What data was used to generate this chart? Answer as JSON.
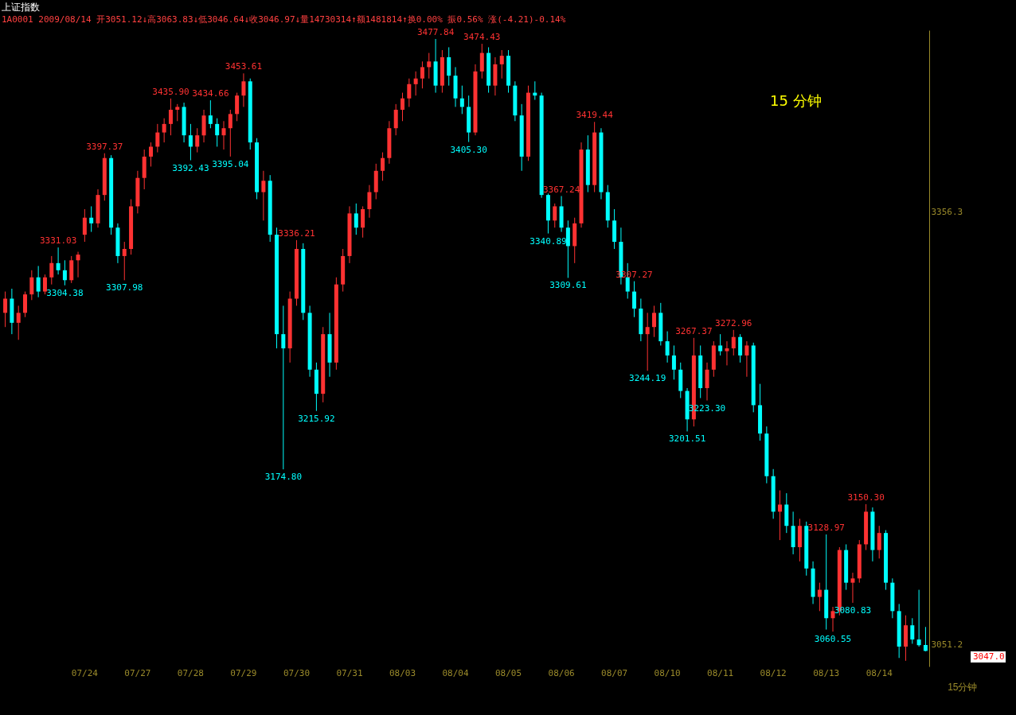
{
  "chart_data": {
    "type": "candlestick",
    "title": "上证指数",
    "subtitle": "1A0001 2009/08/14 开3051.12↓高3063.83↓低3046.64↓收3046.97↓量14730314↑额1481814↑换0.00% 振0.56% 涨(-4.21)-0.14%",
    "xlabel": "15分钟",
    "categories": [
      null,
      null,
      null,
      null,
      null,
      null,
      null,
      null,
      null,
      null,
      null,
      null,
      "07/24",
      null,
      null,
      null,
      null,
      null,
      null,
      null,
      "07/27",
      null,
      null,
      null,
      null,
      null,
      null,
      null,
      "07/28",
      null,
      null,
      null,
      null,
      null,
      null,
      null,
      "07/29",
      null,
      null,
      null,
      null,
      null,
      null,
      null,
      "07/30",
      null,
      null,
      null,
      null,
      null,
      null,
      null,
      "07/31",
      null,
      null,
      null,
      null,
      null,
      null,
      null,
      "08/03",
      null,
      null,
      null,
      null,
      null,
      null,
      null,
      "08/04",
      null,
      null,
      null,
      null,
      null,
      null,
      null,
      "08/05",
      null,
      null,
      null,
      null,
      null,
      null,
      null,
      "08/06",
      null,
      null,
      null,
      null,
      null,
      null,
      null,
      "08/07",
      null,
      null,
      null,
      null,
      null,
      null,
      null,
      "08/10",
      null,
      null,
      null,
      null,
      null,
      null,
      null,
      "08/11",
      null,
      null,
      null,
      null,
      null,
      null,
      null,
      "08/12",
      null,
      null,
      null,
      null,
      null,
      null,
      null,
      "08/13",
      null,
      null,
      null,
      null,
      null,
      null,
      null,
      "08/14",
      null,
      null,
      null,
      null,
      null,
      null,
      null
    ],
    "ohlc": [
      [
        3285,
        3300,
        3275,
        3295
      ],
      [
        3295,
        3302,
        3270,
        3278
      ],
      [
        3278,
        3290,
        3266,
        3285
      ],
      [
        3285,
        3300,
        3282,
        3298
      ],
      [
        3298,
        3315,
        3294,
        3310
      ],
      [
        3310,
        3318,
        3296,
        3300
      ],
      [
        3300,
        3312,
        3298,
        3310
      ],
      [
        3310,
        3325,
        3305,
        3320
      ],
      [
        3320,
        3331.03,
        3312,
        3315
      ],
      [
        3315,
        3322,
        3304.38,
        3308
      ],
      [
        3308,
        3325,
        3306,
        3322
      ],
      [
        3322,
        3328,
        3310,
        3326
      ],
      [
        3340,
        3358,
        3335,
        3352
      ],
      [
        3352,
        3360,
        3342,
        3348
      ],
      [
        3348,
        3372,
        3345,
        3368
      ],
      [
        3368,
        3397.37,
        3364,
        3394
      ],
      [
        3394,
        3396,
        3340,
        3345
      ],
      [
        3345,
        3348,
        3320,
        3325
      ],
      [
        3325,
        3335,
        3307.98,
        3330
      ],
      [
        3330,
        3365,
        3326,
        3360
      ],
      [
        3360,
        3385,
        3355,
        3380
      ],
      [
        3380,
        3400,
        3372,
        3395
      ],
      [
        3395,
        3405,
        3388,
        3402
      ],
      [
        3402,
        3418,
        3398,
        3412
      ],
      [
        3412,
        3422,
        3405,
        3418
      ],
      [
        3418,
        3435.9,
        3410,
        3428
      ],
      [
        3428,
        3432,
        3420,
        3430
      ],
      [
        3430,
        3433,
        3405,
        3410
      ],
      [
        3410,
        3418,
        3392.43,
        3402
      ],
      [
        3402,
        3415,
        3398,
        3410
      ],
      [
        3410,
        3428,
        3405,
        3424
      ],
      [
        3424,
        3434.66,
        3415,
        3418
      ],
      [
        3418,
        3422,
        3402,
        3410
      ],
      [
        3410,
        3420,
        3400,
        3415
      ],
      [
        3415,
        3428,
        3395.04,
        3425
      ],
      [
        3425,
        3440,
        3420,
        3438
      ],
      [
        3438,
        3453.61,
        3430,
        3448
      ],
      [
        3448,
        3450,
        3400,
        3405
      ],
      [
        3405,
        3408,
        3365,
        3370
      ],
      [
        3370,
        3385,
        3350,
        3378
      ],
      [
        3378,
        3382,
        3335,
        3340
      ],
      [
        3340,
        3345,
        3260,
        3270
      ],
      [
        3270,
        3290,
        3174.8,
        3260
      ],
      [
        3260,
        3300,
        3250,
        3295
      ],
      [
        3295,
        3336.21,
        3290,
        3330
      ],
      [
        3330,
        3334,
        3280,
        3285
      ],
      [
        3285,
        3290,
        3240,
        3245
      ],
      [
        3245,
        3250,
        3215.92,
        3228
      ],
      [
        3228,
        3275,
        3222,
        3270
      ],
      [
        3270,
        3285,
        3240,
        3250
      ],
      [
        3250,
        3310,
        3245,
        3305
      ],
      [
        3305,
        3330,
        3300,
        3325
      ],
      [
        3325,
        3360,
        3320,
        3355
      ],
      [
        3355,
        3362,
        3340,
        3345
      ],
      [
        3345,
        3360,
        3338,
        3358
      ],
      [
        3358,
        3375,
        3352,
        3370
      ],
      [
        3370,
        3390,
        3365,
        3385
      ],
      [
        3385,
        3398,
        3378,
        3394
      ],
      [
        3394,
        3420,
        3390,
        3415
      ],
      [
        3415,
        3432,
        3410,
        3428
      ],
      [
        3428,
        3440,
        3420,
        3436
      ],
      [
        3436,
        3450,
        3430,
        3446
      ],
      [
        3446,
        3455,
        3438,
        3450
      ],
      [
        3450,
        3462,
        3443,
        3458
      ],
      [
        3458,
        3468,
        3450,
        3462
      ],
      [
        3462,
        3477.84,
        3440,
        3445
      ],
      [
        3445,
        3470,
        3440,
        3465
      ],
      [
        3465,
        3472,
        3445,
        3452
      ],
      [
        3452,
        3458,
        3430,
        3436
      ],
      [
        3436,
        3445,
        3425,
        3430
      ],
      [
        3430,
        3438,
        3405.3,
        3412
      ],
      [
        3412,
        3460,
        3410,
        3455
      ],
      [
        3455,
        3474.43,
        3450,
        3468
      ],
      [
        3468,
        3472,
        3440,
        3445
      ],
      [
        3445,
        3465,
        3438,
        3460
      ],
      [
        3460,
        3470,
        3450,
        3466
      ],
      [
        3466,
        3470,
        3440,
        3445
      ],
      [
        3445,
        3448,
        3420,
        3424
      ],
      [
        3424,
        3432,
        3385,
        3395
      ],
      [
        3395,
        3445,
        3392,
        3440
      ],
      [
        3440,
        3448,
        3435,
        3438
      ],
      [
        3438,
        3440,
        3366,
        3368
      ],
      [
        3368,
        3369,
        3340.89,
        3350
      ],
      [
        3350,
        3362,
        3345,
        3360
      ],
      [
        3360,
        3367.24,
        3342,
        3345
      ],
      [
        3345,
        3350,
        3309.61,
        3332
      ],
      [
        3332,
        3352,
        3320,
        3348
      ],
      [
        3348,
        3405,
        3345,
        3400
      ],
      [
        3400,
        3410,
        3370,
        3375
      ],
      [
        3375,
        3419.44,
        3370,
        3412
      ],
      [
        3412,
        3415,
        3365,
        3370
      ],
      [
        3370,
        3375,
        3345,
        3350
      ],
      [
        3350,
        3358,
        3330,
        3335
      ],
      [
        3335,
        3345,
        3305,
        3310
      ],
      [
        3310,
        3320,
        3295,
        3300
      ],
      [
        3300,
        3307.27,
        3282,
        3288
      ],
      [
        3288,
        3295,
        3265,
        3270
      ],
      [
        3270,
        3285,
        3244.19,
        3275
      ],
      [
        3275,
        3290,
        3268,
        3285
      ],
      [
        3285,
        3292,
        3262,
        3265
      ],
      [
        3265,
        3272,
        3250,
        3255
      ],
      [
        3255,
        3262,
        3238,
        3245
      ],
      [
        3245,
        3250,
        3225,
        3230
      ],
      [
        3230,
        3232,
        3201.51,
        3210
      ],
      [
        3210,
        3267.37,
        3205,
        3255
      ],
      [
        3255,
        3262,
        3225,
        3232
      ],
      [
        3232,
        3250,
        3223.3,
        3245
      ],
      [
        3245,
        3265,
        3240,
        3262
      ],
      [
        3262,
        3270,
        3255,
        3258
      ],
      [
        3258,
        3265,
        3248,
        3260
      ],
      [
        3260,
        3272.96,
        3255,
        3268
      ],
      [
        3268,
        3270,
        3250,
        3255
      ],
      [
        3255,
        3265,
        3240,
        3262
      ],
      [
        3262,
        3264,
        3215,
        3220
      ],
      [
        3220,
        3235,
        3195,
        3200
      ],
      [
        3200,
        3205,
        3165,
        3170
      ],
      [
        3170,
        3175,
        3140,
        3145
      ],
      [
        3145,
        3160,
        3125,
        3150
      ],
      [
        3150,
        3158,
        3130,
        3135
      ],
      [
        3135,
        3145,
        3115,
        3120
      ],
      [
        3120,
        3140,
        3110,
        3135
      ],
      [
        3135,
        3138,
        3100,
        3105
      ],
      [
        3105,
        3110,
        3080,
        3085
      ],
      [
        3085,
        3095,
        3075,
        3090
      ],
      [
        3090,
        3128.97,
        3062,
        3070
      ],
      [
        3070,
        3078,
        3060.55,
        3075
      ],
      [
        3075,
        3120,
        3072,
        3118
      ],
      [
        3118,
        3122,
        3090,
        3095
      ],
      [
        3095,
        3102,
        3080.83,
        3098
      ],
      [
        3098,
        3125,
        3095,
        3122
      ],
      [
        3122,
        3150.3,
        3118,
        3145
      ],
      [
        3145,
        3148,
        3110,
        3118
      ],
      [
        3118,
        3135,
        3112,
        3130
      ],
      [
        3130,
        3132,
        3090,
        3095
      ],
      [
        3095,
        3098,
        3070,
        3075
      ],
      [
        3075,
        3080,
        3042,
        3050
      ],
      [
        3050,
        3072,
        3040,
        3065
      ],
      [
        3065,
        3070,
        3052,
        3055
      ],
      [
        3055,
        3090,
        3050,
        3051
      ],
      [
        3051.12,
        3063.83,
        3046.64,
        3046.97
      ]
    ],
    "ylim": [
      3036,
      3484
    ],
    "yticks": [
      3051.2,
      3356.3
    ],
    "grid": false,
    "annotations": [
      "15 分钟",
      {
        "text": "3331.03",
        "y": 3331.03
      },
      {
        "text": "3304.38",
        "y": 3304.38
      },
      {
        "text": "3397.37",
        "y": 3397.37
      },
      {
        "text": "3307.98",
        "y": 3307.98
      },
      {
        "text": "3435.90",
        "y": 3435.9
      },
      {
        "text": "3392.43",
        "y": 3392.43
      },
      {
        "text": "3434.66",
        "y": 3434.66
      },
      {
        "text": "3395.04",
        "y": 3395.04
      },
      {
        "text": "3453.61",
        "y": 3453.61
      },
      {
        "text": "3174.80",
        "y": 3174.8
      },
      {
        "text": "3336.21",
        "y": 3336.21
      },
      {
        "text": "3215.92",
        "y": 3215.92
      },
      {
        "text": "3477.84",
        "y": 3477.84
      },
      {
        "text": "3474.43",
        "y": 3474.43
      },
      {
        "text": "3405.30",
        "y": 3405.3
      },
      {
        "text": "3340.89",
        "y": 3340.89
      },
      {
        "text": "3367.24",
        "y": 3367.24
      },
      {
        "text": "3309.61",
        "y": 3309.61
      },
      {
        "text": "3419.44",
        "y": 3419.44
      },
      {
        "text": "3307.27",
        "y": 3307.27
      },
      {
        "text": "3244.19",
        "y": 3244.19
      },
      {
        "text": "3201.51",
        "y": 3201.51
      },
      {
        "text": "3267.37",
        "y": 3267.37
      },
      {
        "text": "3223.30",
        "y": 3223.3
      },
      {
        "text": "3272.96",
        "y": 3272.96
      },
      {
        "text": "3128.97",
        "y": 3128.97
      },
      {
        "text": "3060.55",
        "y": 3060.55
      },
      {
        "text": "3080.83",
        "y": 3080.83
      },
      {
        "text": "3150.30",
        "y": 3150.3
      },
      "3047.0"
    ]
  }
}
